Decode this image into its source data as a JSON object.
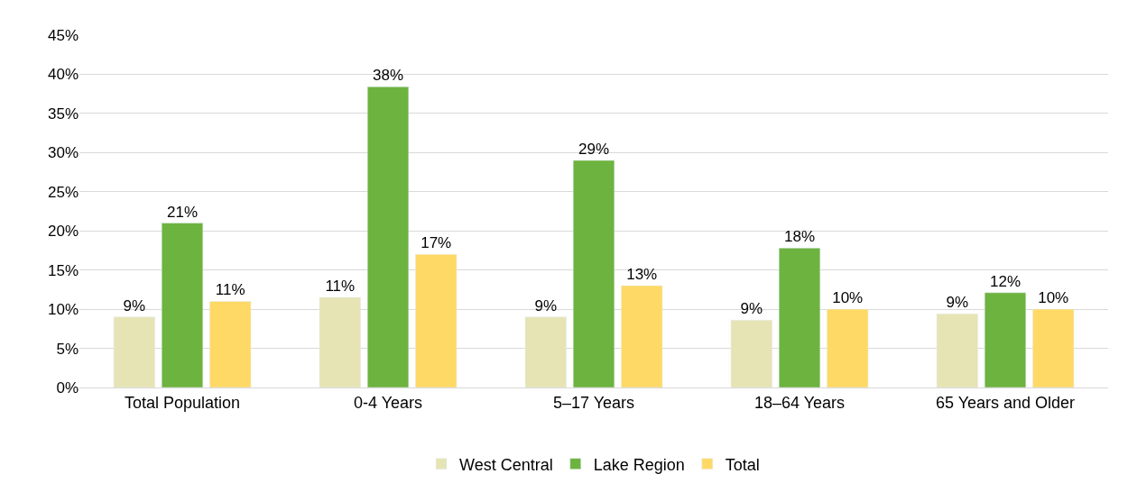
{
  "chart_data": {
    "type": "bar",
    "categories": [
      "Total Population",
      "0-4 Years",
      "5–17 Years",
      "18–64 Years",
      "65 Years and Older"
    ],
    "series": [
      {
        "name": "West Central",
        "color": "#e6e4b4",
        "values": [
          9.0,
          11.5,
          9.0,
          8.6,
          9.4
        ],
        "value_labels": [
          "9%",
          "11%",
          "9%",
          "9%",
          "9%"
        ]
      },
      {
        "name": "Lake Region",
        "color": "#6db33f",
        "values": [
          21.0,
          38.4,
          29.0,
          17.8,
          12.1
        ],
        "value_labels": [
          "21%",
          "38%",
          "29%",
          "18%",
          "12%"
        ]
      },
      {
        "name": "Total",
        "color": "#ffd966",
        "values": [
          11.0,
          17.0,
          13.0,
          10.0,
          10.0
        ],
        "value_labels": [
          "11%",
          "17%",
          "13%",
          "10%",
          "10%"
        ]
      }
    ],
    "ylim": [
      0,
      45
    ],
    "yticks": [
      {
        "value": 0,
        "label": "0%"
      },
      {
        "value": 5,
        "label": "5%"
      },
      {
        "value": 10,
        "label": "10%"
      },
      {
        "value": 15,
        "label": "15%"
      },
      {
        "value": 20,
        "label": "20%"
      },
      {
        "value": 25,
        "label": "25%"
      },
      {
        "value": 30,
        "label": "30%"
      },
      {
        "value": 35,
        "label": "35%"
      },
      {
        "value": 40,
        "label": "40%"
      },
      {
        "value": 45,
        "label": "45%"
      }
    ],
    "grid": "y",
    "legend": "bottom"
  }
}
